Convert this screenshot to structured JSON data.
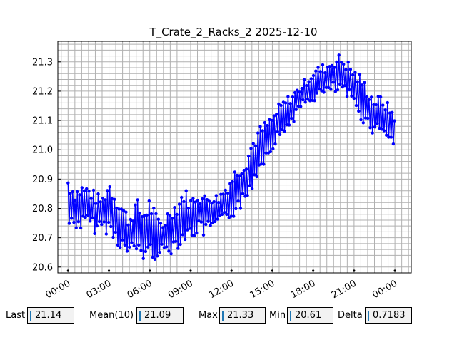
{
  "chart_data": {
    "type": "line",
    "title": "T_Crate_2_Racks_2 2025-12-10",
    "xlabel": "",
    "ylabel": "",
    "x_range_hours": [
      -0.75,
      25.2
    ],
    "ylim": [
      20.58,
      21.37
    ],
    "x_tick_labels": [
      "00:00",
      "03:00",
      "06:00",
      "09:00",
      "12:00",
      "15:00",
      "18:00",
      "21:00",
      "00:00"
    ],
    "x_tick_hours": [
      0,
      3,
      6,
      9,
      12,
      15,
      18,
      21,
      24
    ],
    "y_tick_labels": [
      "20.6",
      "20.7",
      "20.8",
      "20.9",
      "21.0",
      "21.1",
      "21.2",
      "21.3"
    ],
    "y_ticks": [
      20.6,
      20.7,
      20.8,
      20.9,
      21.0,
      21.1,
      21.2,
      21.3
    ],
    "grid": true,
    "line_color": "#0000ff",
    "series": [
      {
        "x_hours": [
          0.0,
          0.5,
          1.0,
          1.5,
          2.0,
          2.5,
          3.0,
          3.5,
          4.0,
          4.5,
          5.0,
          5.5,
          6.0,
          6.5,
          7.0,
          7.5,
          8.0,
          8.5,
          9.0,
          9.5,
          10.0,
          10.5,
          11.0,
          11.5,
          12.0,
          12.5,
          13.0,
          13.5,
          14.0,
          14.5,
          15.0,
          15.5,
          16.0,
          16.5,
          17.0,
          17.5,
          18.0,
          18.5,
          19.0,
          19.5,
          20.0,
          20.5,
          21.0,
          21.5,
          22.0,
          22.5,
          23.0,
          23.5,
          24.0
        ],
        "upper": [
          20.92,
          20.87,
          20.89,
          20.88,
          20.86,
          20.84,
          20.91,
          20.86,
          20.82,
          20.78,
          20.84,
          20.8,
          20.85,
          20.78,
          20.76,
          20.82,
          20.83,
          20.88,
          20.84,
          20.87,
          20.85,
          20.86,
          20.85,
          20.88,
          20.92,
          20.96,
          20.98,
          21.04,
          21.08,
          21.1,
          21.12,
          21.16,
          21.18,
          21.2,
          21.22,
          21.25,
          21.28,
          21.29,
          21.3,
          21.32,
          21.33,
          21.31,
          21.28,
          21.26,
          21.22,
          21.18,
          21.19,
          21.16,
          21.14
        ],
        "lower": [
          20.72,
          20.73,
          20.72,
          20.74,
          20.71,
          20.73,
          20.7,
          20.68,
          20.65,
          20.63,
          20.64,
          20.62,
          20.61,
          20.63,
          20.64,
          20.64,
          20.66,
          20.68,
          20.69,
          20.71,
          20.7,
          20.72,
          20.73,
          20.75,
          20.76,
          20.79,
          20.8,
          20.86,
          20.92,
          20.96,
          21.0,
          21.03,
          21.06,
          21.09,
          21.13,
          21.15,
          21.16,
          21.18,
          21.18,
          21.19,
          21.18,
          21.17,
          21.14,
          21.1,
          21.07,
          21.05,
          21.06,
          21.03,
          20.99
        ]
      }
    ]
  },
  "stats": {
    "last_label": "Last",
    "last_value": "21.14",
    "mean_label": "Mean(10)",
    "mean_value": "21.09",
    "max_label": "Max",
    "max_value": "21.33",
    "min_label": "Min",
    "min_value": "20.61",
    "delta_label": "Delta",
    "delta_value": "0.7183"
  }
}
